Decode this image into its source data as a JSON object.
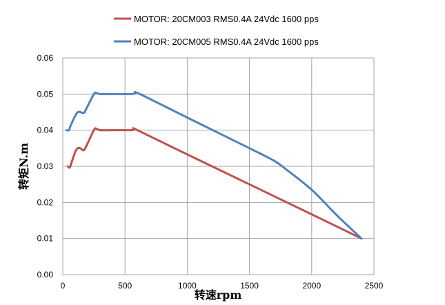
{
  "chart_data": {
    "type": "line",
    "xlabel": "转速rpm",
    "ylabel": "转矩N.m",
    "xlim": [
      0,
      2500
    ],
    "ylim": [
      0,
      0.06
    ],
    "x_ticks": [
      "0",
      "500",
      "1000",
      "1500",
      "2000",
      "2500"
    ],
    "y_ticks": [
      "0.00",
      "0.01",
      "0.02",
      "0.03",
      "0.04",
      "0.05",
      "0.06"
    ],
    "grid": true,
    "legend_position": "top",
    "series": [
      {
        "name": "MOTOR: 20CM003 RMS0.4A  24Vdc  1600 pps",
        "color": "#c0504d",
        "points": [
          [
            40,
            0.03
          ],
          [
            50,
            0.0297
          ],
          [
            60,
            0.03
          ],
          [
            100,
            0.034
          ],
          [
            120,
            0.035
          ],
          [
            140,
            0.035
          ],
          [
            160,
            0.0345
          ],
          [
            180,
            0.035
          ],
          [
            250,
            0.04
          ],
          [
            270,
            0.0404
          ],
          [
            300,
            0.04
          ],
          [
            400,
            0.04
          ],
          [
            500,
            0.04
          ],
          [
            550,
            0.04
          ],
          [
            580,
            0.0402
          ],
          [
            600,
            0.04
          ],
          [
            1000,
            0.0333
          ],
          [
            1500,
            0.025
          ],
          [
            2000,
            0.0167
          ],
          [
            2400,
            0.01
          ]
        ]
      },
      {
        "name": "MOTOR: 20CM005 RMS0.4A  24Vdc  1600 pps",
        "color": "#4f81bd",
        "points": [
          [
            30,
            0.04
          ],
          [
            50,
            0.04
          ],
          [
            60,
            0.041
          ],
          [
            100,
            0.044
          ],
          [
            120,
            0.045
          ],
          [
            140,
            0.045
          ],
          [
            170,
            0.0448
          ],
          [
            190,
            0.046
          ],
          [
            250,
            0.05
          ],
          [
            270,
            0.0503
          ],
          [
            300,
            0.05
          ],
          [
            400,
            0.05
          ],
          [
            500,
            0.05
          ],
          [
            560,
            0.05
          ],
          [
            580,
            0.0502
          ],
          [
            620,
            0.05
          ],
          [
            1000,
            0.0435
          ],
          [
            1500,
            0.035
          ],
          [
            1700,
            0.0315
          ],
          [
            1800,
            0.029
          ],
          [
            2000,
            0.0235
          ],
          [
            2200,
            0.0165
          ],
          [
            2400,
            0.01
          ]
        ]
      }
    ]
  }
}
